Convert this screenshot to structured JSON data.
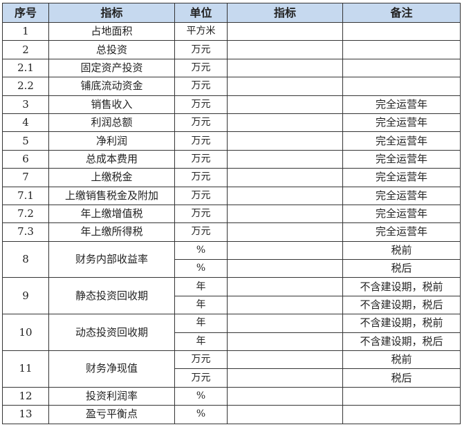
{
  "header": {
    "seq": "序号",
    "indicator": "指标",
    "unit": "单位",
    "value": "指标",
    "remark": "备注"
  },
  "rows": [
    {
      "seq": "1",
      "name": "占地面积",
      "units": [
        "平方米"
      ],
      "remarks": [
        ""
      ]
    },
    {
      "seq": "2",
      "name": "总投资",
      "units": [
        "万元"
      ],
      "remarks": [
        ""
      ]
    },
    {
      "seq": "2.1",
      "name": "固定资产投资",
      "units": [
        "万元"
      ],
      "remarks": [
        ""
      ]
    },
    {
      "seq": "2.2",
      "name": "铺底流动资金",
      "units": [
        "万元"
      ],
      "remarks": [
        ""
      ]
    },
    {
      "seq": "3",
      "name": "销售收入",
      "units": [
        "万元"
      ],
      "remarks": [
        "完全运营年"
      ]
    },
    {
      "seq": "4",
      "name": "利润总额",
      "units": [
        "万元"
      ],
      "remarks": [
        "完全运营年"
      ]
    },
    {
      "seq": "5",
      "name": "净利润",
      "units": [
        "万元"
      ],
      "remarks": [
        "完全运营年"
      ]
    },
    {
      "seq": "6",
      "name": "总成本费用",
      "units": [
        "万元"
      ],
      "remarks": [
        "完全运营年"
      ]
    },
    {
      "seq": "7",
      "name": "上缴税金",
      "units": [
        "万元"
      ],
      "remarks": [
        "完全运营年"
      ]
    },
    {
      "seq": "7.1",
      "name": "上缴销售税金及附加",
      "units": [
        "万元"
      ],
      "remarks": [
        "完全运营年"
      ]
    },
    {
      "seq": "7.2",
      "name": "年上缴增值税",
      "units": [
        "万元"
      ],
      "remarks": [
        "完全运营年"
      ]
    },
    {
      "seq": "7.3",
      "name": "年上缴所得税",
      "units": [
        "万元"
      ],
      "remarks": [
        "完全运营年"
      ]
    },
    {
      "seq": "8",
      "name": "财务内部收益率",
      "units": [
        "%",
        "%"
      ],
      "remarks": [
        "税前",
        "税后"
      ]
    },
    {
      "seq": "9",
      "name": "静态投资回收期",
      "units": [
        "年",
        "年"
      ],
      "remarks": [
        "不含建设期，税前",
        "不含建设期，税后"
      ]
    },
    {
      "seq": "10",
      "name": "动态投资回收期",
      "units": [
        "年",
        "年"
      ],
      "remarks": [
        "不含建设期，税前",
        "不含建设期，税后"
      ]
    },
    {
      "seq": "11",
      "name": "财务净现值",
      "units": [
        "万元",
        "万元"
      ],
      "remarks": [
        "税前",
        "税后"
      ]
    },
    {
      "seq": "12",
      "name": "投资利润率",
      "units": [
        "%"
      ],
      "remarks": [
        ""
      ]
    },
    {
      "seq": "13",
      "name": "盈亏平衡点",
      "units": [
        "%"
      ],
      "remarks": [
        ""
      ]
    }
  ]
}
